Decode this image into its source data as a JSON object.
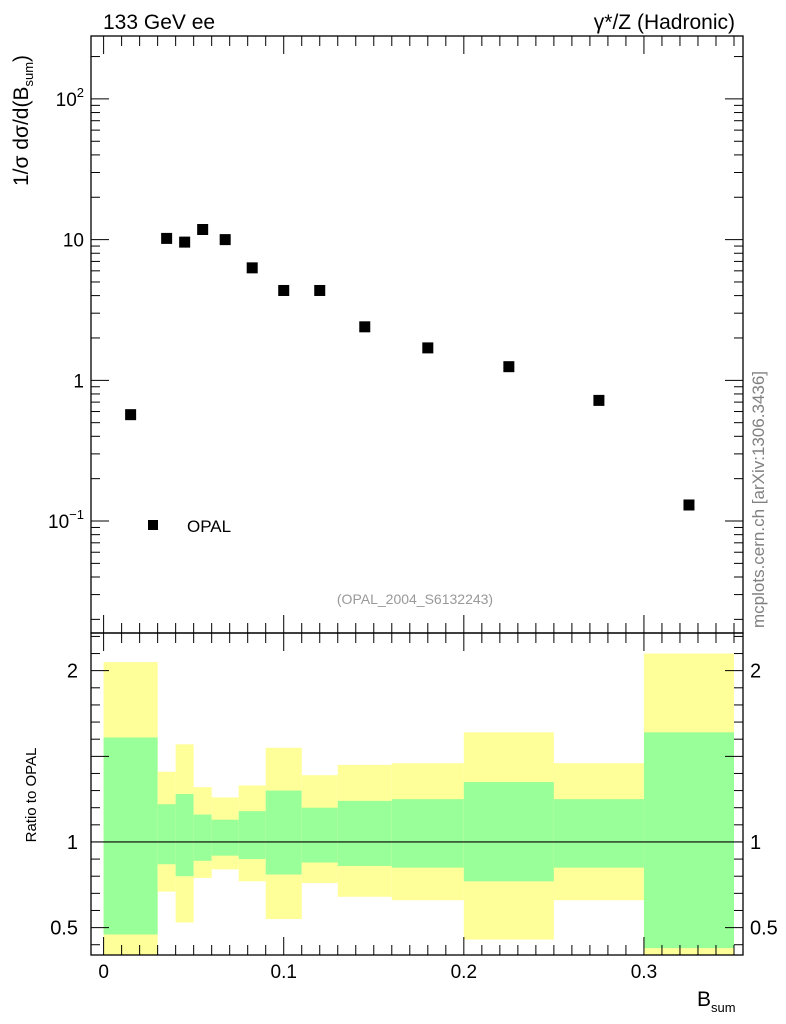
{
  "header": {
    "left": "133 GeV ee",
    "right": "γ*/Z (Hadronic)"
  },
  "side_label": "mcplots.cern.ch [arXiv:1306.3436]",
  "analysis_id": "(OPAL_2004_S6132243)",
  "colors": {
    "inner_band": "#99ff99",
    "outer_band": "#ffff99",
    "marker": "#000000"
  },
  "chart_data": [
    {
      "type": "scatter",
      "title": "1/σ dσ/d(B_sum)",
      "ylabel": {
        "main": "1/σ dσ/d(B",
        "sub": "sum",
        "close": ")"
      },
      "yscale": "log",
      "ylim": [
        0.016,
        280
      ],
      "yticks": [
        {
          "value": 0.1,
          "base": "10",
          "exp": "−1"
        },
        {
          "value": 1,
          "base": "1",
          "exp": ""
        },
        {
          "value": 10,
          "base": "10",
          "exp": ""
        },
        {
          "value": 100,
          "base": "10",
          "exp": "2"
        }
      ],
      "legend": {
        "label": "OPAL",
        "placement": "bottom-left"
      },
      "series": [
        {
          "name": "OPAL",
          "x": [
            0.015,
            0.035,
            0.045,
            0.055,
            0.0675,
            0.0825,
            0.1,
            0.12,
            0.145,
            0.18,
            0.225,
            0.275,
            0.325
          ],
          "y": [
            0.57,
            10.2,
            9.6,
            11.8,
            10.0,
            6.3,
            4.35,
            4.35,
            2.4,
            1.7,
            1.25,
            0.72,
            0.13
          ]
        }
      ]
    },
    {
      "type": "area",
      "title": "Ratio to OPAL",
      "ylabel": "Ratio to OPAL",
      "xlabel": {
        "main": "B",
        "sub": "sum"
      },
      "xlim": [
        -0.007,
        0.355
      ],
      "ylim": [
        0.34,
        2.22
      ],
      "xticks": [
        {
          "value": 0,
          "label": "0"
        },
        {
          "value": 0.1,
          "label": "0.1"
        },
        {
          "value": 0.2,
          "label": "0.2"
        },
        {
          "value": 0.3,
          "label": "0.3"
        }
      ],
      "yticks": [
        {
          "value": 0.5,
          "label": "0.5"
        },
        {
          "value": 1,
          "label": "1"
        },
        {
          "value": 2,
          "label": "2"
        }
      ],
      "reference_line": 1,
      "bins": [
        {
          "lo": 0.0,
          "hi": 0.03,
          "in_lo": 0.46,
          "in_hi": 1.61,
          "out_lo": 0.28,
          "out_hi": 2.05
        },
        {
          "lo": 0.03,
          "hi": 0.04,
          "in_lo": 0.87,
          "in_hi": 1.22,
          "out_lo": 0.71,
          "out_hi": 1.41
        },
        {
          "lo": 0.04,
          "hi": 0.05,
          "in_lo": 0.8,
          "in_hi": 1.28,
          "out_lo": 0.53,
          "out_hi": 1.57
        },
        {
          "lo": 0.05,
          "hi": 0.06,
          "in_lo": 0.89,
          "in_hi": 1.16,
          "out_lo": 0.79,
          "out_hi": 1.32
        },
        {
          "lo": 0.06,
          "hi": 0.075,
          "in_lo": 0.92,
          "in_hi": 1.13,
          "out_lo": 0.84,
          "out_hi": 1.26
        },
        {
          "lo": 0.075,
          "hi": 0.09,
          "in_lo": 0.9,
          "in_hi": 1.18,
          "out_lo": 0.77,
          "out_hi": 1.33
        },
        {
          "lo": 0.09,
          "hi": 0.11,
          "in_lo": 0.81,
          "in_hi": 1.3,
          "out_lo": 0.55,
          "out_hi": 1.55
        },
        {
          "lo": 0.11,
          "hi": 0.13,
          "in_lo": 0.88,
          "in_hi": 1.2,
          "out_lo": 0.76,
          "out_hi": 1.39
        },
        {
          "lo": 0.13,
          "hi": 0.16,
          "in_lo": 0.86,
          "in_hi": 1.24,
          "out_lo": 0.68,
          "out_hi": 1.45
        },
        {
          "lo": 0.16,
          "hi": 0.2,
          "in_lo": 0.85,
          "in_hi": 1.25,
          "out_lo": 0.66,
          "out_hi": 1.46
        },
        {
          "lo": 0.2,
          "hi": 0.25,
          "in_lo": 0.77,
          "in_hi": 1.35,
          "out_lo": 0.43,
          "out_hi": 1.64
        },
        {
          "lo": 0.25,
          "hi": 0.3,
          "in_lo": 0.85,
          "in_hi": 1.25,
          "out_lo": 0.66,
          "out_hi": 1.46
        },
        {
          "lo": 0.3,
          "hi": 0.35,
          "in_lo": 0.38,
          "in_hi": 1.64,
          "out_lo": 0.28,
          "out_hi": 2.1
        }
      ]
    }
  ]
}
